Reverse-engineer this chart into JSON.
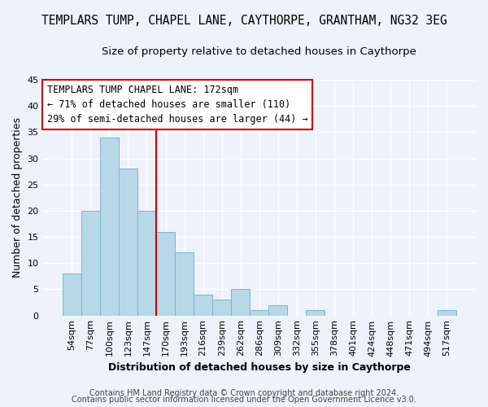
{
  "title": "TEMPLARS TUMP, CHAPEL LANE, CAYTHORPE, GRANTHAM, NG32 3EG",
  "subtitle": "Size of property relative to detached houses in Caythorpe",
  "xlabel": "Distribution of detached houses by size in Caythorpe",
  "ylabel": "Number of detached properties",
  "bin_labels": [
    "54sqm",
    "77sqm",
    "100sqm",
    "123sqm",
    "147sqm",
    "170sqm",
    "193sqm",
    "216sqm",
    "239sqm",
    "262sqm",
    "286sqm",
    "309sqm",
    "332sqm",
    "355sqm",
    "378sqm",
    "401sqm",
    "424sqm",
    "448sqm",
    "471sqm",
    "494sqm",
    "517sqm"
  ],
  "bar_heights": [
    8,
    20,
    34,
    28,
    20,
    16,
    12,
    4,
    3,
    5,
    1,
    2,
    0,
    1,
    0,
    0,
    0,
    0,
    0,
    0,
    1
  ],
  "bar_color": "#b8d8e8",
  "bar_edge_color": "#7ab4cc",
  "highlight_line_color": "#cc0000",
  "ylim": [
    0,
    45
  ],
  "yticks": [
    0,
    5,
    10,
    15,
    20,
    25,
    30,
    35,
    40,
    45
  ],
  "annotation_title": "TEMPLARS TUMP CHAPEL LANE: 172sqm",
  "annotation_line1": "← 71% of detached houses are smaller (110)",
  "annotation_line2": "29% of semi-detached houses are larger (44) →",
  "footer_line1": "Contains HM Land Registry data © Crown copyright and database right 2024.",
  "footer_line2": "Contains public sector information licensed under the Open Government Licence v3.0.",
  "background_color": "#eef2fb",
  "grid_color": "#ffffff",
  "title_fontsize": 10.5,
  "subtitle_fontsize": 9.5,
  "axis_label_fontsize": 9,
  "tick_fontsize": 8,
  "annotation_fontsize": 8.5,
  "footer_fontsize": 7
}
